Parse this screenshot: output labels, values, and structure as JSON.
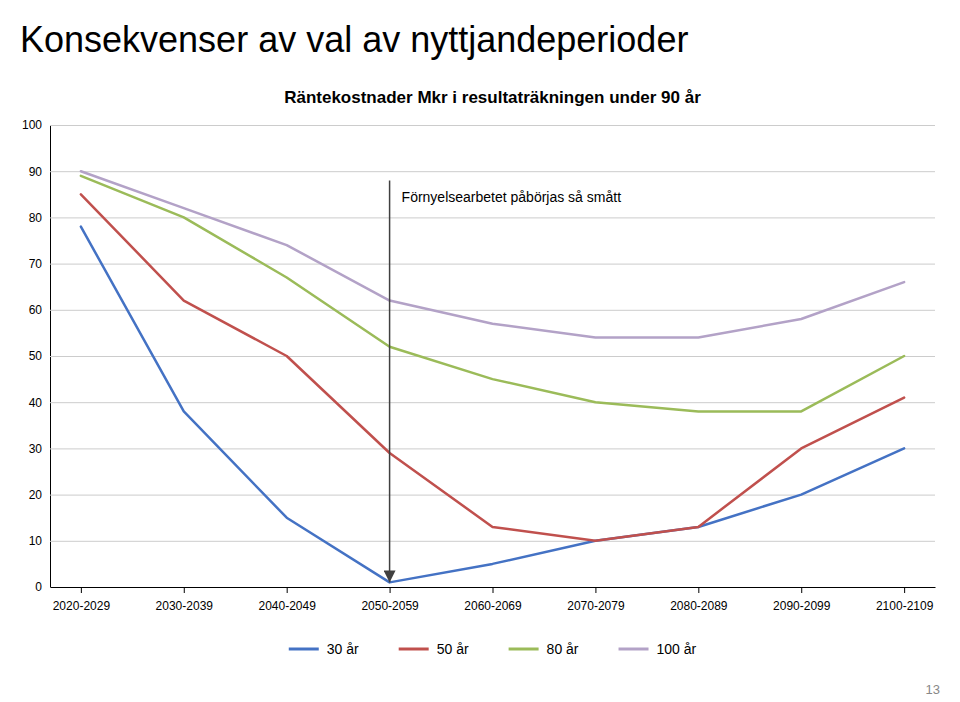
{
  "chart_data": {
    "type": "line",
    "title": "Konsekvenser av val av nyttjandeperioder",
    "subtitle": "Räntekostnader Mkr i resultaträkningen under 90 år",
    "categories": [
      "2020-2029",
      "2030-2039",
      "2040-2049",
      "2050-2059",
      "2060-2069",
      "2070-2079",
      "2080-2089",
      "2090-2099",
      "2100-2109"
    ],
    "series": [
      {
        "name": "30 år",
        "color": "#4472C4",
        "values": [
          78,
          38,
          15,
          1,
          5,
          10,
          13,
          20,
          30
        ]
      },
      {
        "name": "50 år",
        "color": "#C0504D",
        "values": [
          85,
          62,
          50,
          29,
          13,
          10,
          13,
          30,
          41
        ]
      },
      {
        "name": "80 år",
        "color": "#9BBB59",
        "values": [
          89,
          80,
          67,
          52,
          45,
          40,
          38,
          38,
          50
        ]
      },
      {
        "name": "100 år",
        "color": "#B3A2C7",
        "values": [
          90,
          82,
          74,
          62,
          57,
          54,
          54,
          58,
          66
        ]
      }
    ],
    "annotations": [
      {
        "text": "Förnyelsearbetet påbörjas så smått",
        "x": "2050-2059",
        "arrow_from": 88,
        "arrow_to": 1
      },
      {
        "text": "13"
      }
    ],
    "ylim": [
      0,
      100
    ],
    "yticks": [
      0,
      10,
      20,
      30,
      40,
      50,
      60,
      70,
      80,
      90,
      100
    ],
    "grid": true,
    "legend": "bottom"
  }
}
